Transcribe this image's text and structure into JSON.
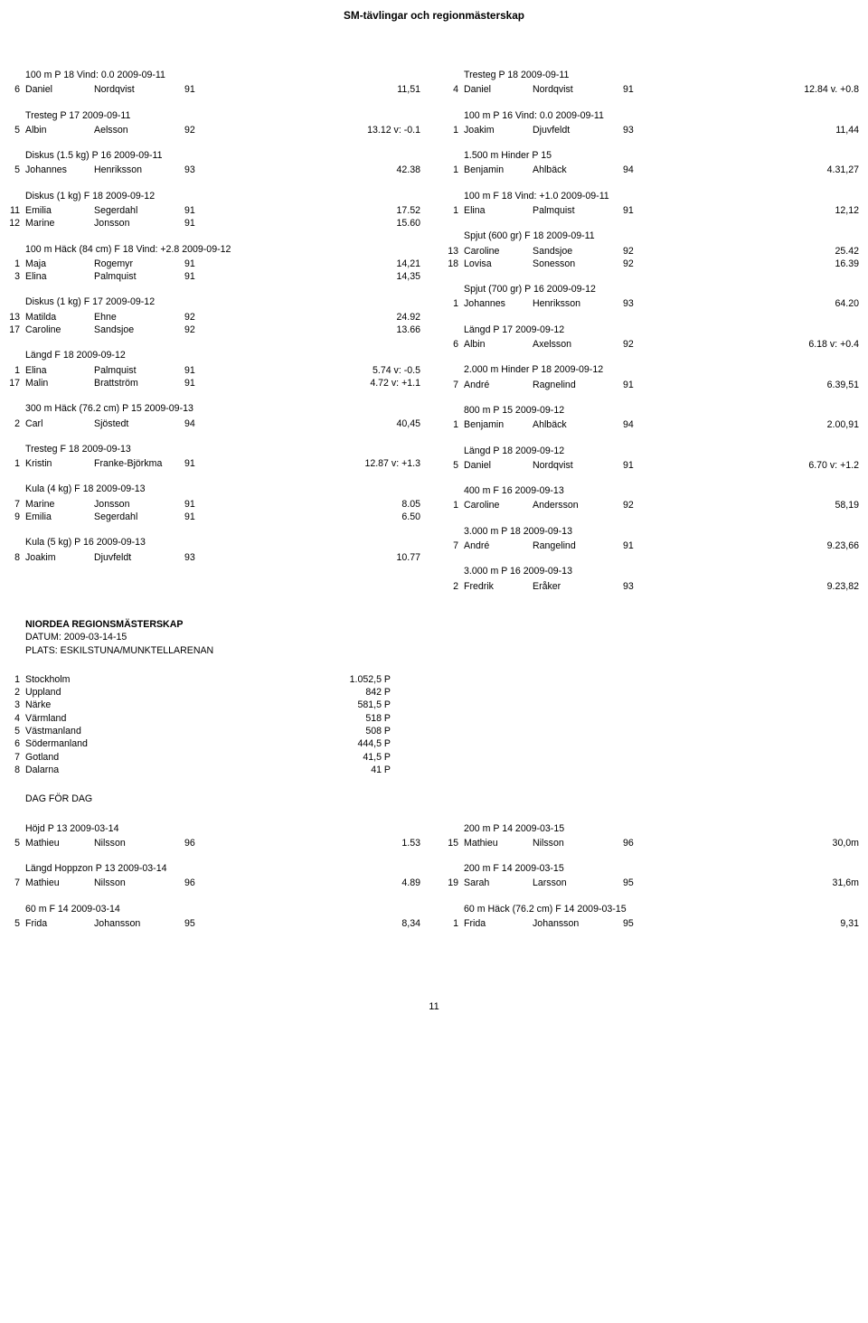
{
  "page_title": "SM-tävlingar och regionmästerskap",
  "page_number": "11",
  "left": [
    {
      "heading": "100 m P 18 Vind: 0.0  2009-09-11",
      "rows": [
        {
          "pos": "6",
          "fn": "Daniel",
          "ln": "Nordqvist",
          "yr": "91",
          "res": "11,51"
        }
      ]
    },
    {
      "heading": "Tresteg P 17  2009-09-11",
      "rows": [
        {
          "pos": "5",
          "fn": "Albin",
          "ln": "Aelsson",
          "yr": "92",
          "res": "13.12 v: -0.1"
        }
      ]
    },
    {
      "heading": "Diskus (1.5 kg) P 16  2009-09-11",
      "rows": [
        {
          "pos": "5",
          "fn": "Johannes",
          "ln": "Henriksson",
          "yr": "93",
          "res": "42.38"
        }
      ]
    },
    {
      "heading": "Diskus (1 kg) F 18  2009-09-12",
      "rows": [
        {
          "pos": "11",
          "fn": "Emilia",
          "ln": "Segerdahl",
          "yr": "91",
          "res": "17.52"
        },
        {
          "pos": "12",
          "fn": "Marine",
          "ln": "Jonsson",
          "yr": "91",
          "res": "15.60"
        }
      ]
    },
    {
      "heading": "100 m Häck (84 cm) F 18  Vind: +2.8  2009-09-12",
      "rows": [
        {
          "pos": "1",
          "fn": "Maja",
          "ln": "Rogemyr",
          "yr": "91",
          "res": "14,21"
        },
        {
          "pos": "3",
          "fn": "Elina",
          "ln": "Palmquist",
          "yr": "91",
          "res": "14,35"
        }
      ]
    },
    {
      "heading": "Diskus (1 kg) F 17  2009-09-12",
      "rows": [
        {
          "pos": "13",
          "fn": "Matilda",
          "ln": "Ehne",
          "yr": "92",
          "res": "24.92"
        },
        {
          "pos": "17",
          "fn": "Caroline",
          "ln": "Sandsjoe",
          "yr": "92",
          "res": "13.66"
        }
      ]
    },
    {
      "heading": "Längd F 18  2009-09-12",
      "rows": [
        {
          "pos": "1",
          "fn": "Elina",
          "ln": "Palmquist",
          "yr": "91",
          "res": "5.74  v: -0.5"
        },
        {
          "pos": "17",
          "fn": "Malin",
          "ln": "Brattström",
          "yr": "91",
          "res": "4.72 v: +1.1"
        }
      ]
    },
    {
      "heading": "300 m Häck (76.2 cm) P 15  2009-09-13",
      "rows": [
        {
          "pos": "2",
          "fn": "Carl",
          "ln": "Sjöstedt",
          "yr": "94",
          "res": "40,45"
        }
      ]
    },
    {
      "heading": "Tresteg F 18  2009-09-13",
      "rows": [
        {
          "pos": "1",
          "fn": "Kristin",
          "ln": "Franke-Björkma",
          "yr": "91",
          "res": "12.87 v: +1.3"
        }
      ]
    },
    {
      "heading": "Kula (4 kg) F 18  2009-09-13",
      "rows": [
        {
          "pos": "7",
          "fn": "Marine",
          "ln": "Jonsson",
          "yr": "91",
          "res": "8.05"
        },
        {
          "pos": "9",
          "fn": "Emilia",
          "ln": "Segerdahl",
          "yr": "91",
          "res": "6.50"
        }
      ]
    },
    {
      "heading": "Kula (5 kg) P 16  2009-09-13",
      "rows": [
        {
          "pos": "8",
          "fn": "Joakim",
          "ln": "Djuvfeldt",
          "yr": "93",
          "res": "10.77"
        }
      ]
    }
  ],
  "left_meta": {
    "title": "NIORDEA REGIONSMÄSTERSKAP",
    "date": "DATUM: 2009-03-14-15",
    "place": "PLATS: ESKILSTUNA/MUNKTELLARENAN"
  },
  "region_rows": [
    {
      "pos": "1",
      "name": "Stockholm",
      "pts": "1.052,5 P"
    },
    {
      "pos": "2",
      "name": "Uppland",
      "pts": "842 P"
    },
    {
      "pos": "3",
      "name": "Närke",
      "pts": "581,5 P"
    },
    {
      "pos": "4",
      "name": "Värmland",
      "pts": "518 P"
    },
    {
      "pos": "5",
      "name": "Västmanland",
      "pts": "508 P"
    },
    {
      "pos": "6",
      "name": "Södermanland",
      "pts": "444,5 P"
    },
    {
      "pos": "7",
      "name": "Gotland",
      "pts": "41,5 P"
    },
    {
      "pos": "8",
      "name": "Dalarna",
      "pts": "41 P"
    }
  ],
  "dag_heading": "DAG FÖR DAG",
  "left_bottom": [
    {
      "heading": "Höjd P 13  2009-03-14",
      "rows": [
        {
          "pos": "5",
          "fn": "Mathieu",
          "ln": "Nilsson",
          "yr": "96",
          "res": "1.53"
        }
      ]
    },
    {
      "heading": "Längd Hoppzon P 13  2009-03-14",
      "rows": [
        {
          "pos": "7",
          "fn": "Mathieu",
          "ln": "Nilsson",
          "yr": "96",
          "res": "4.89"
        }
      ]
    },
    {
      "heading": "60 m F 14 2009-03-14",
      "rows": [
        {
          "pos": "5",
          "fn": "Frida",
          "ln": "Johansson",
          "yr": "95",
          "res": "8,34"
        }
      ]
    }
  ],
  "right": [
    {
      "heading": "Tresteg P 18 2009-09-11",
      "rows": [
        {
          "pos": "4",
          "fn": "Daniel",
          "ln": "Nordqvist",
          "yr": "91",
          "res": "12.84 v. +0.8"
        }
      ]
    },
    {
      "heading": "100 m P 16 Vind: 0.0  2009-09-11",
      "rows": [
        {
          "pos": "1",
          "fn": "Joakim",
          "ln": "Djuvfeldt",
          "yr": "93",
          "res": "11,44"
        }
      ]
    },
    {
      "heading": "1.500 m Hinder P 15",
      "rows": [
        {
          "pos": "1",
          "fn": "Benjamin",
          "ln": "Ahlbäck",
          "yr": "94",
          "res": "4.31,27"
        }
      ]
    },
    {
      "heading": "100 m F 18  Vind: +1.0   2009-09-11",
      "rows": [
        {
          "pos": "1",
          "fn": "Elina",
          "ln": "Palmquist",
          "yr": "91",
          "res": "12,12"
        }
      ]
    },
    {
      "heading": "Spjut (600 gr) F 18 2009-09-11",
      "rows": [
        {
          "pos": "13",
          "fn": "Caroline",
          "ln": "Sandsjoe",
          "yr": "92",
          "res": "25.42"
        },
        {
          "pos": "18",
          "fn": "Lovisa",
          "ln": "Sonesson",
          "yr": "92",
          "res": "16.39"
        }
      ]
    },
    {
      "heading": "Spjut (700 gr) P 16  2009-09-12",
      "rows": [
        {
          "pos": "1",
          "fn": "Johannes",
          "ln": "Henriksson",
          "yr": "93",
          "res": "64.20"
        }
      ]
    },
    {
      "heading": "Längd P 17  2009-09-12",
      "rows": [
        {
          "pos": "6",
          "fn": "Albin",
          "ln": "Axelsson",
          "yr": "92",
          "res": "6.18 v: +0.4"
        }
      ]
    },
    {
      "heading": "2.000 m Hinder P 18  2009-09-12",
      "rows": [
        {
          "pos": "7",
          "fn": "André",
          "ln": "Ragnelind",
          "yr": "91",
          "res": "6.39,51"
        }
      ]
    },
    {
      "heading": "800 m P 15  2009-09-12",
      "rows": [
        {
          "pos": "1",
          "fn": "Benjamin",
          "ln": "Ahlbäck",
          "yr": "94",
          "res": "2.00,91"
        }
      ]
    },
    {
      "heading": "Längd P 18  2009-09-12",
      "rows": [
        {
          "pos": "5",
          "fn": "Daniel",
          "ln": "Nordqvist",
          "yr": "91",
          "res": "6.70 v: +1.2"
        }
      ]
    },
    {
      "heading": "400 m F 16  2009-09-13",
      "rows": [
        {
          "pos": "1",
          "fn": "Caroline",
          "ln": "Andersson",
          "yr": "92",
          "res": "58,19"
        }
      ]
    },
    {
      "heading": "3.000 m P 18  2009-09-13",
      "rows": [
        {
          "pos": "7",
          "fn": "André",
          "ln": "Rangelind",
          "yr": "91",
          "res": "9.23,66"
        }
      ]
    },
    {
      "heading": "3.000 m P 16  2009-09-13",
      "rows": [
        {
          "pos": "2",
          "fn": "Fredrik",
          "ln": "Eråker",
          "yr": "93",
          "res": "9.23,82"
        }
      ]
    }
  ],
  "right_bottom": [
    {
      "heading": "200 m P 14  2009-03-15",
      "rows": [
        {
          "pos": "15",
          "fn": "Mathieu",
          "ln": "Nilsson",
          "yr": "96",
          "res": "30,0m"
        }
      ]
    },
    {
      "heading": "200 m F 14  2009-03-15",
      "rows": [
        {
          "pos": "19",
          "fn": "Sarah",
          "ln": "Larsson",
          "yr": "95",
          "res": "31,6m"
        }
      ]
    },
    {
      "heading": "60 m Häck (76.2 cm) F 14  2009-03-15",
      "rows": [
        {
          "pos": "1",
          "fn": "Frida",
          "ln": "Johansson",
          "yr": "95",
          "res": "9,31"
        }
      ]
    }
  ]
}
